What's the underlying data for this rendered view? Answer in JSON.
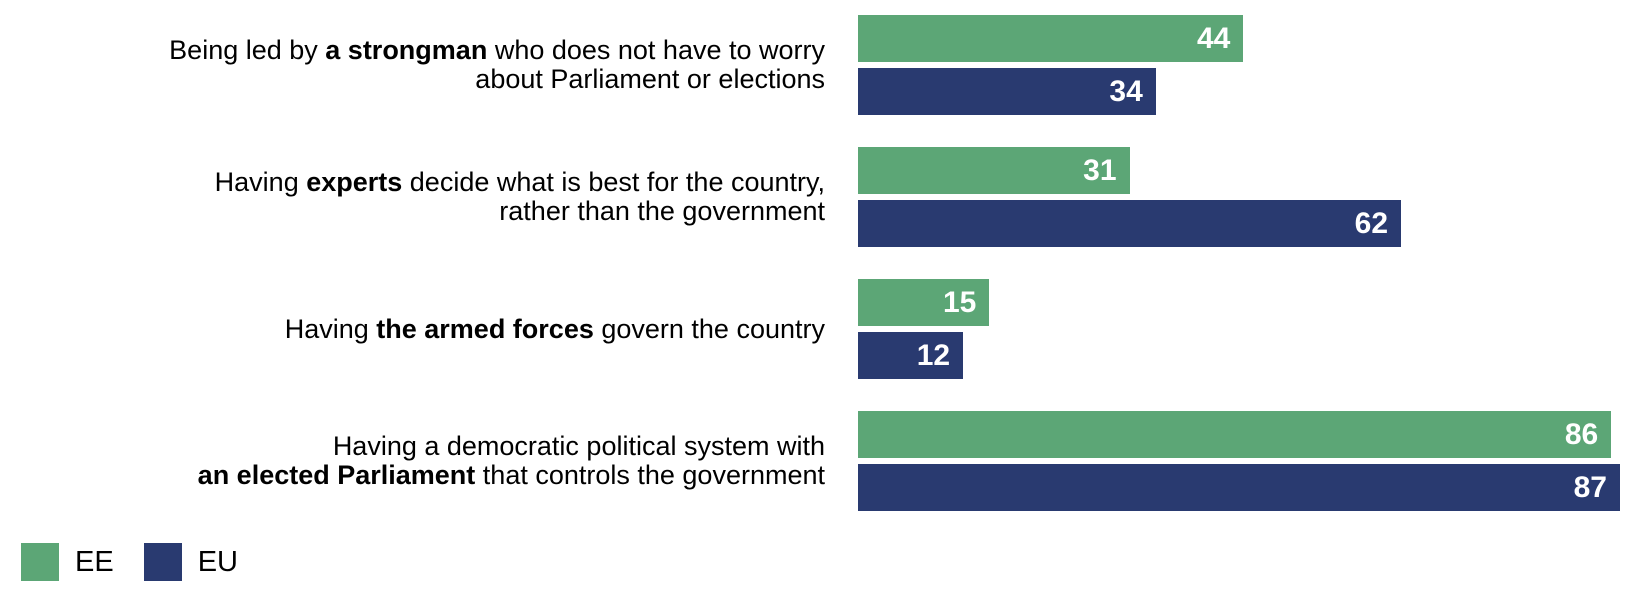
{
  "chart_data": {
    "type": "bar",
    "orientation": "horizontal",
    "title": "",
    "value_axis_max_shown": false,
    "scale_max": 87,
    "grid": false,
    "legend_position": "bottom-left",
    "series_names": [
      "EE",
      "EU"
    ],
    "colors": {
      "ee": "#5CA676",
      "eu": "#293A70",
      "value_text": "#ffffff",
      "label_text": "#000000"
    },
    "rows": [
      {
        "label_lines": [
          [
            {
              "t": "Being led by ",
              "b": false
            },
            {
              "t": "a strongman",
              "b": true
            },
            {
              "t": " who does not have to worry",
              "b": false
            }
          ],
          [
            {
              "t": "about Parliament or elections",
              "b": false
            }
          ]
        ],
        "values": {
          "ee": 44,
          "eu": 34
        }
      },
      {
        "label_lines": [
          [
            {
              "t": "Having ",
              "b": false
            },
            {
              "t": "experts",
              "b": true
            },
            {
              "t": " decide what is best for the country,",
              "b": false
            }
          ],
          [
            {
              "t": "rather than the government",
              "b": false
            }
          ]
        ],
        "values": {
          "ee": 31,
          "eu": 62
        }
      },
      {
        "label_lines": [
          [
            {
              "t": "Having ",
              "b": false
            },
            {
              "t": "the armed forces",
              "b": true
            },
            {
              "t": " govern the country",
              "b": false
            }
          ]
        ],
        "values": {
          "ee": 15,
          "eu": 12
        }
      },
      {
        "label_lines": [
          [
            {
              "t": "Having a democratic political system with",
              "b": false
            }
          ],
          [
            {
              "t": "an elected Parliament",
              "b": true
            },
            {
              "t": " that controls the government",
              "b": false
            }
          ]
        ],
        "values": {
          "ee": 86,
          "eu": 87
        }
      }
    ],
    "legend": [
      {
        "label": "EE",
        "color": "#5CA676"
      },
      {
        "label": "EU",
        "color": "#293A70"
      }
    ]
  }
}
